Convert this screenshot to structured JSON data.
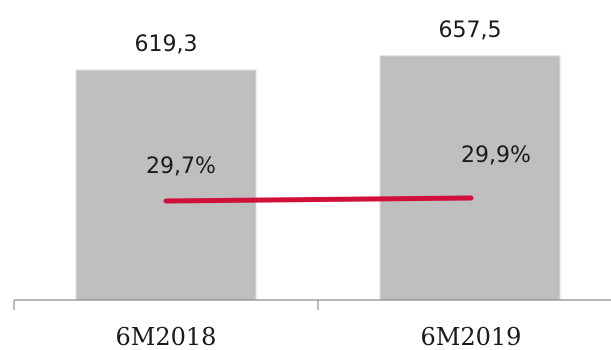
{
  "chart_data": {
    "type": "bar",
    "categories": [
      "6M2018",
      "6M2019"
    ],
    "series": [
      {
        "type": "bar",
        "values": [
          619.3,
          657.5
        ],
        "value_labels": [
          "619,3",
          "657,5"
        ],
        "color": "#bfbfbf"
      },
      {
        "type": "line",
        "values": [
          29.7,
          29.9
        ],
        "value_labels": [
          "29,7%",
          "29,9%"
        ],
        "color": "#d0103a"
      }
    ],
    "title": "",
    "xlabel": "",
    "ylabel": "",
    "grid": false,
    "legend": "none"
  }
}
